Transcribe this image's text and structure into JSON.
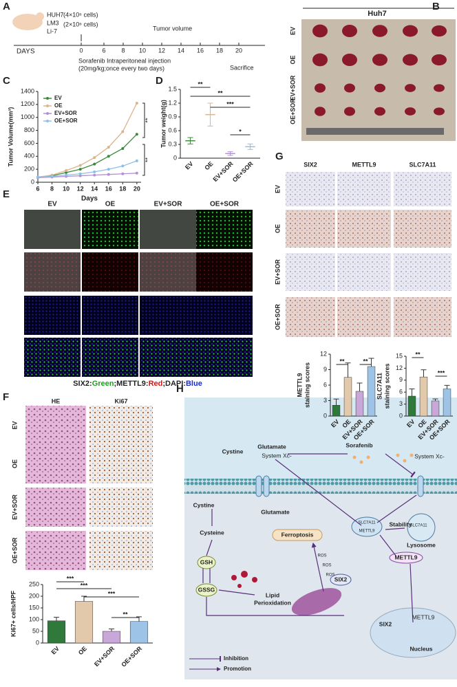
{
  "chart_data": [
    {
      "type": "line",
      "ylabel": "Tumor Volume(mm³)",
      "xlabel": "Days",
      "x": [
        6,
        8,
        10,
        12,
        14,
        16,
        18,
        20
      ],
      "xlim": [
        6,
        20.6
      ],
      "xticks": [
        6,
        8,
        10,
        12,
        14,
        16,
        18,
        20
      ],
      "ylim": [
        0,
        1400
      ],
      "yticks": [
        0,
        200,
        400,
        600,
        800,
        1000,
        1200,
        1400
      ],
      "legend": "upper left",
      "series": [
        {
          "name": "EV",
          "color": "#3a8a3a",
          "values": [
            80,
            100,
            150,
            200,
            280,
            400,
            520,
            740
          ]
        },
        {
          "name": "OE",
          "color": "#dcb48c",
          "values": [
            80,
            110,
            180,
            260,
            380,
            540,
            780,
            1220
          ]
        },
        {
          "name": "EV+SOR",
          "color": "#b48ed6",
          "values": [
            70,
            80,
            90,
            100,
            110,
            120,
            130,
            140
          ]
        },
        {
          "name": "OE+SOR",
          "color": "#8cc0e8",
          "values": [
            80,
            90,
            110,
            130,
            160,
            200,
            250,
            330
          ]
        }
      ],
      "annotations": [
        "**",
        "**"
      ]
    },
    {
      "type": "dot",
      "ylabel": "Tumor weight(g)",
      "categories": [
        "EV",
        "OE",
        "EV+SOR",
        "OE+SOR"
      ],
      "values": [
        0.38,
        0.95,
        0.1,
        0.25
      ],
      "errors": [
        0.07,
        0.25,
        0.04,
        0.06
      ],
      "colors": [
        "#3a8a3a",
        "#dcb48c",
        "#b48ed6",
        "#8cc0e8"
      ],
      "ylim": [
        0,
        1.5
      ],
      "yticks": [
        0,
        0.3,
        0.6,
        0.9,
        1.2,
        1.5
      ],
      "annotations": [
        "**",
        "**",
        "***",
        "*"
      ]
    },
    {
      "type": "bar",
      "ylabel": "Ki67+ cells/HPF",
      "categories": [
        "EV",
        "OE",
        "EV+SOR",
        "OE+SOR"
      ],
      "values": [
        95,
        178,
        50,
        92
      ],
      "errors": [
        15,
        22,
        10,
        20
      ],
      "colors": [
        "#2f7a3a",
        "#e2c9ac",
        "#c9a7d9",
        "#9dc4e6"
      ],
      "ylim": [
        0,
        250
      ],
      "yticks": [
        0,
        50,
        100,
        150,
        200,
        250
      ],
      "annotations": [
        "***",
        "***",
        "***",
        "**"
      ]
    },
    {
      "type": "bar",
      "ylabel": [
        "METTL9",
        "staining scores"
      ],
      "categories": [
        "EV",
        "OE",
        "EV+SOR",
        "OE+SOR"
      ],
      "values": [
        2.1,
        7.5,
        4.8,
        9.6
      ],
      "errors": [
        1.2,
        2.8,
        1.6,
        1.6
      ],
      "colors": [
        "#2f7a3a",
        "#e2c9ac",
        "#c9a7d9",
        "#9dc4e6"
      ],
      "ylim": [
        0,
        12
      ],
      "yticks": [
        0,
        3,
        6,
        9,
        12
      ],
      "annotations": [
        "**",
        "**"
      ]
    },
    {
      "type": "bar",
      "ylabel": [
        "SLC7A11",
        "staining scores"
      ],
      "categories": [
        "EV",
        "OE",
        "EV+SOR",
        "OE+SOR"
      ],
      "values": [
        5.0,
        9.8,
        3.8,
        6.8
      ],
      "errors": [
        1.8,
        1.8,
        0.5,
        0.9
      ],
      "colors": [
        "#2f7a3a",
        "#e2c9ac",
        "#c9a7d9",
        "#9dc4e6"
      ],
      "ylim": [
        0,
        15
      ],
      "yticks": [
        0,
        3,
        6,
        9,
        12,
        15
      ],
      "annotations": [
        "**",
        "***"
      ]
    }
  ],
  "panel_labels": [
    "A",
    "B",
    "C",
    "D",
    "E",
    "F",
    "G",
    "H"
  ],
  "timeline": {
    "cell_lines": [
      "HUH7",
      "LM3",
      "Li-7"
    ],
    "cell_counts": [
      "(4×10⁶ cells)",
      "(2×10⁶ cells)"
    ],
    "axis_label": "DAYS",
    "days": [
      0,
      6,
      8,
      10,
      12,
      14,
      16,
      18,
      20
    ],
    "event_top": "Tumor volume",
    "treatment": "Sorafenib Intraperitoneal injection",
    "dose": "(20mg/kg;once every two days)",
    "end": "Sacrifice"
  },
  "tumor_photo": {
    "title": "Huh7",
    "rows": [
      "EV",
      "OE",
      "EV+SOR",
      "OE+SOR"
    ]
  },
  "if_panel": {
    "columns": [
      "EV",
      "OE",
      "EV+SOR",
      "OE+SOR"
    ],
    "caption": [
      {
        "text": "SIX2:",
        "color": "#222222"
      },
      {
        "text": "Green",
        "color": "#1aa31a"
      },
      {
        "text": ";METTL9:",
        "color": "#222222"
      },
      {
        "text": "Red",
        "color": "#d01818"
      },
      {
        "text": ";DAPI:",
        "color": "#222222"
      },
      {
        "text": "Blue",
        "color": "#1a2ad0"
      }
    ]
  },
  "ihc_f": {
    "columns": [
      "HE",
      "Ki67"
    ],
    "rows": [
      "EV",
      "OE",
      "EV+SOR",
      "OE+SOR"
    ]
  },
  "ihc_g": {
    "columns": [
      "SIX2",
      "METTL9",
      "SLC7A11"
    ],
    "rows": [
      "EV",
      "OE",
      "EV+SOR",
      "OE+SOR"
    ]
  },
  "diagram": {
    "nodes": [
      "Cystine",
      "Glutamate",
      "System Xc-",
      "Sorafenib",
      "System Xc-",
      "Cystine",
      "Glutamate",
      "Cysteine",
      "GSH",
      "GSSG",
      "Ferroptosis",
      "Lipid",
      "Perioxidation",
      "SLC7A11",
      "METTL9",
      "Stability",
      "SLC7A11",
      "Lysosome",
      "METTL9",
      "SIX2",
      "SIX2",
      "METTL9",
      "Nucleus",
      "ROS",
      "ROS",
      "ROS"
    ],
    "legend": [
      "Inhibition",
      "Promotion"
    ]
  }
}
